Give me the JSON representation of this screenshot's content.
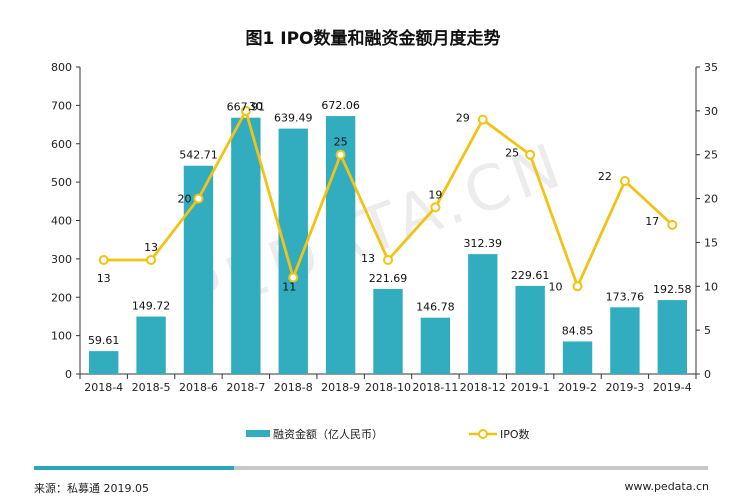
{
  "colors": {
    "bar": "#31ADBF",
    "line": "#F2C314",
    "marker_fill": "#ffffff",
    "axis": "#333333"
  },
  "watermark": "PEDATA.CN",
  "footer": {
    "source": "来源：私募通 2019.05",
    "site": "www.pedata.cn"
  },
  "chart_data": {
    "type": "bar+line",
    "title": "图1 IPO数量和融资金额月度走势",
    "categories": [
      "2018-4",
      "2018-5",
      "2018-6",
      "2018-7",
      "2018-8",
      "2018-9",
      "2018-10",
      "2018-11",
      "2018-12",
      "2019-1",
      "2019-2",
      "2019-3",
      "2019-4"
    ],
    "series": [
      {
        "name": "融资金额（亿人民币）",
        "type": "bar",
        "axis": "left",
        "values": [
          59.61,
          149.72,
          542.71,
          667.91,
          639.49,
          672.06,
          221.69,
          146.78,
          312.39,
          229.61,
          84.85,
          173.76,
          192.58
        ]
      },
      {
        "name": "IPO数",
        "type": "line",
        "axis": "right",
        "values": [
          13,
          13,
          20,
          30,
          11,
          25,
          13,
          19,
          29,
          25,
          10,
          22,
          17
        ]
      }
    ],
    "left_axis": {
      "min": 0,
      "max": 800,
      "ticks": [
        "0",
        "100",
        "200",
        "300",
        "400",
        "500",
        "600",
        "700",
        "800"
      ]
    },
    "right_axis": {
      "min": 0,
      "max": 35,
      "ticks": [
        "0",
        "5",
        "10",
        "15",
        "20",
        "25",
        "30",
        "35"
      ]
    },
    "legend": [
      "融资金额（亿人民币）",
      "IPO数"
    ]
  }
}
